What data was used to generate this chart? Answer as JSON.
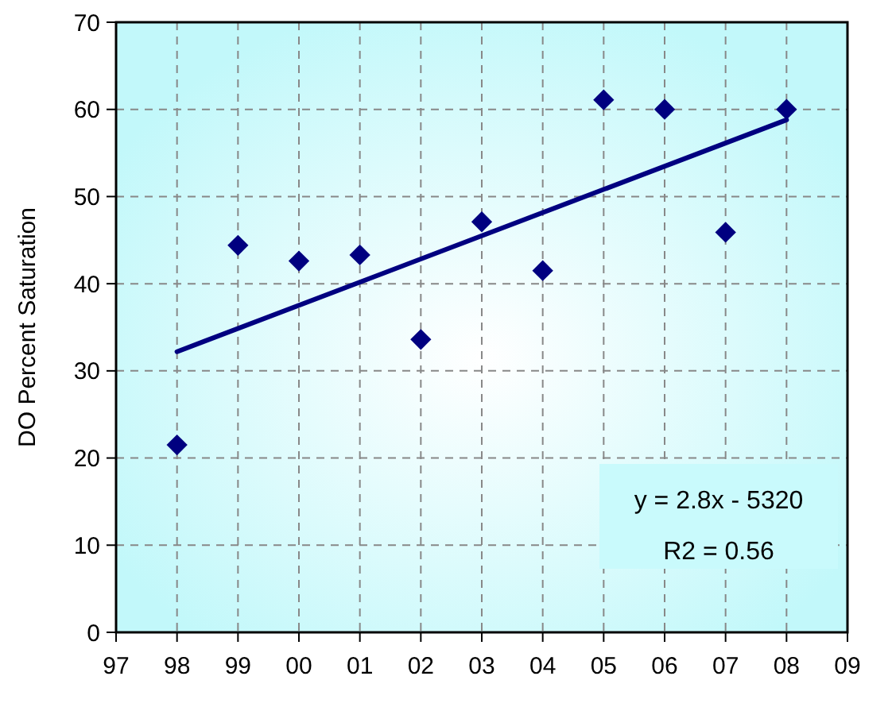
{
  "chart_data": {
    "type": "scatter",
    "ylabel": "DO Percent Saturation",
    "x": [
      1998,
      1999,
      2000,
      2001,
      2002,
      2003,
      2004,
      2005,
      2006,
      2007,
      2008
    ],
    "series": [
      {
        "color": "#000080",
        "marker": "diamond",
        "values": [
          21.5,
          44.4,
          42.6,
          43.3,
          33.6,
          47.1,
          41.5,
          61.1,
          60,
          45.9,
          60
        ]
      },
      {
        "type": "line",
        "color": "#000080",
        "x": [
          1998,
          2008
        ],
        "values": [
          32.2,
          58.8
        ],
        "marker": "none",
        "line_style": "solid"
      }
    ],
    "xlim": [
      1997,
      2009
    ],
    "xticks": [
      {
        "value": 1997,
        "label": "97"
      },
      {
        "value": 1998,
        "label": "98"
      },
      {
        "value": 1999,
        "label": "99"
      },
      {
        "value": 2000,
        "label": "00"
      },
      {
        "value": 2001,
        "label": "01"
      },
      {
        "value": 2002,
        "label": "02"
      },
      {
        "value": 2003,
        "label": "03"
      },
      {
        "value": 2004,
        "label": "04"
      },
      {
        "value": 2005,
        "label": "05"
      },
      {
        "value": 2006,
        "label": "06"
      },
      {
        "value": 2007,
        "label": "07"
      },
      {
        "value": 2008,
        "label": "08"
      },
      {
        "value": 2009,
        "label": "09"
      }
    ],
    "ylim": [
      0,
      70
    ],
    "yticks": [
      0,
      10,
      20,
      30,
      40,
      50,
      60,
      70
    ],
    "grid": true,
    "annotations": [
      "y = 2.8x - 5320",
      "R2 = 0.56"
    ]
  }
}
